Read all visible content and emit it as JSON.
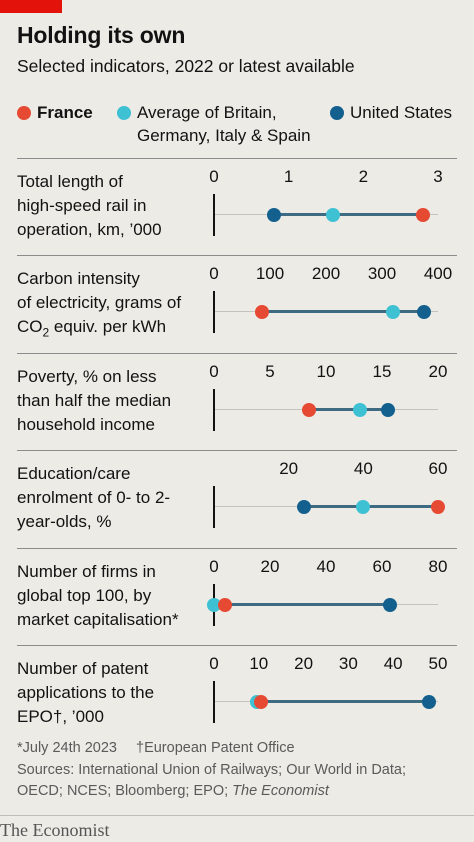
{
  "header": {
    "title": "Holding its own",
    "subtitle": "Selected indicators, 2022 or latest available"
  },
  "legend": [
    {
      "name": "France",
      "color": "#e64a33"
    },
    {
      "name": "Average of Britain, Germany, Italy & Spain",
      "line1": "Average of Britain,",
      "line2": "Germany, Italy & Spain",
      "color": "#3ec1d3"
    },
    {
      "name": "United States",
      "color": "#13608f"
    }
  ],
  "chart_data": [
    {
      "type": "dot-range",
      "label_lines": [
        "Total length of",
        "high-speed rail in",
        "operation, km, ’000"
      ],
      "ticks": [
        0,
        1,
        2,
        3
      ],
      "xlim": [
        0,
        3
      ],
      "values": {
        "France": 2.8,
        "Average": 1.6,
        "United States": 0.8
      }
    },
    {
      "type": "dot-range",
      "label_lines": [
        "Carbon intensity",
        "of electricity, grams of",
        "CO₂ equiv. per kWh"
      ],
      "ticks": [
        0,
        100,
        200,
        300,
        400
      ],
      "xlim": [
        0,
        400
      ],
      "values": {
        "France": 85,
        "Average": 320,
        "United States": 375
      }
    },
    {
      "type": "dot-range",
      "label_lines": [
        "Poverty, % on less",
        "than half the median",
        "household income"
      ],
      "ticks": [
        0,
        5,
        10,
        15,
        20
      ],
      "xlim": [
        0,
        20
      ],
      "values": {
        "France": 8.5,
        "Average": 13,
        "United States": 15.5
      }
    },
    {
      "type": "dot-range",
      "label_lines": [
        "Education/care",
        "enrolment of 0- to 2-",
        "year-olds, %"
      ],
      "ticks": [
        20,
        40,
        60
      ],
      "xlim": [
        0,
        60
      ],
      "values": {
        "France": 60,
        "Average": 40,
        "United States": 24
      }
    },
    {
      "type": "dot-range",
      "label_lines": [
        "Number of firms in",
        "global top 100, by",
        "market capitalisation*"
      ],
      "ticks": [
        0,
        20,
        40,
        60,
        80
      ],
      "xlim": [
        0,
        80
      ],
      "values": {
        "France": 4,
        "Average": 0,
        "United States": 63
      }
    },
    {
      "type": "dot-range",
      "label_lines": [
        "Number of patent",
        "applications to the",
        "EPO†, ’000"
      ],
      "ticks": [
        0,
        10,
        20,
        30,
        40,
        50
      ],
      "xlim": [
        0,
        50
      ],
      "values": {
        "France": 10.5,
        "Average": 9.5,
        "United States": 48
      }
    }
  ],
  "footnotes": {
    "note1": "*July 24th 2023",
    "note2": "†European Patent Office",
    "sources_line1": "Sources: International Union of Railways; Our World in Data;",
    "sources_line2_prefix": "OECD; NCES; Bloomberg; EPO; ",
    "sources_line2_italic": "The Economist"
  },
  "brand": "The Economist"
}
